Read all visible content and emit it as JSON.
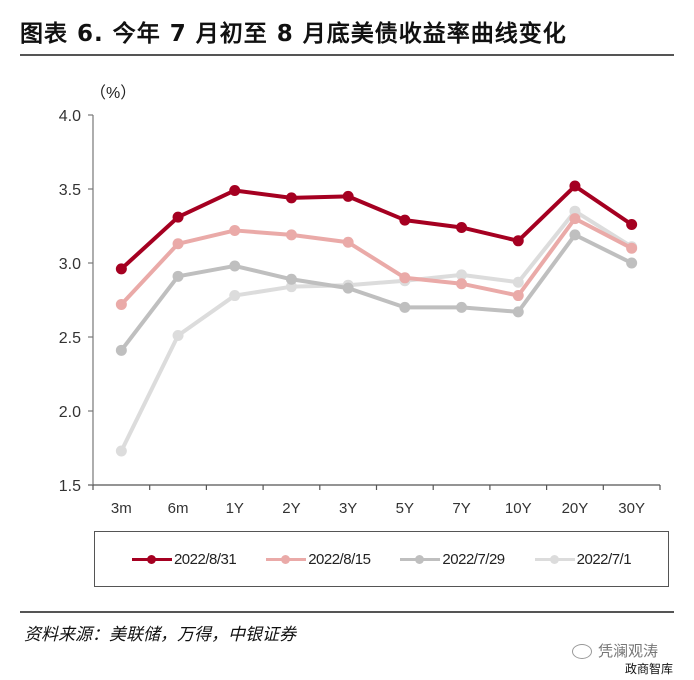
{
  "header": {
    "title": "图表 6. 今年 7 月初至 8 月底美债收益率曲线变化"
  },
  "footer": {
    "source": "资料来源：美联储，万得，中银证券",
    "watermark_line1": "凭澜观涛",
    "watermark_line2": "政商智库"
  },
  "chart_data": {
    "type": "line",
    "title": "今年7月初至8月底美债收益率曲线变化",
    "xlabel": "",
    "ylabel": "（%）",
    "ylim": [
      1.5,
      4.0
    ],
    "yticks": [
      "4.0",
      "3.5",
      "3.0",
      "2.5",
      "2.0",
      "1.5"
    ],
    "grid": false,
    "legend_position": "bottom",
    "categories": [
      "3m",
      "6m",
      "1Y",
      "2Y",
      "3Y",
      "5Y",
      "7Y",
      "10Y",
      "20Y",
      "30Y"
    ],
    "series": [
      {
        "name": "2022/8/31",
        "color": "#a50021",
        "values": [
          2.96,
          3.31,
          3.49,
          3.44,
          3.45,
          3.29,
          3.24,
          3.15,
          3.52,
          3.26
        ]
      },
      {
        "name": "2022/8/15",
        "color": "#eaaaa8",
        "values": [
          2.72,
          3.13,
          3.22,
          3.19,
          3.14,
          2.9,
          2.86,
          2.78,
          3.3,
          3.1
        ]
      },
      {
        "name": "2022/7/29",
        "color": "#bfbfbf",
        "values": [
          2.41,
          2.91,
          2.98,
          2.89,
          2.83,
          2.7,
          2.7,
          2.67,
          3.19,
          3.0
        ]
      },
      {
        "name": "2022/7/1",
        "color": "#dcdcdc",
        "values": [
          1.73,
          2.51,
          2.78,
          2.84,
          2.85,
          2.88,
          2.92,
          2.87,
          3.35,
          3.11
        ]
      }
    ]
  }
}
